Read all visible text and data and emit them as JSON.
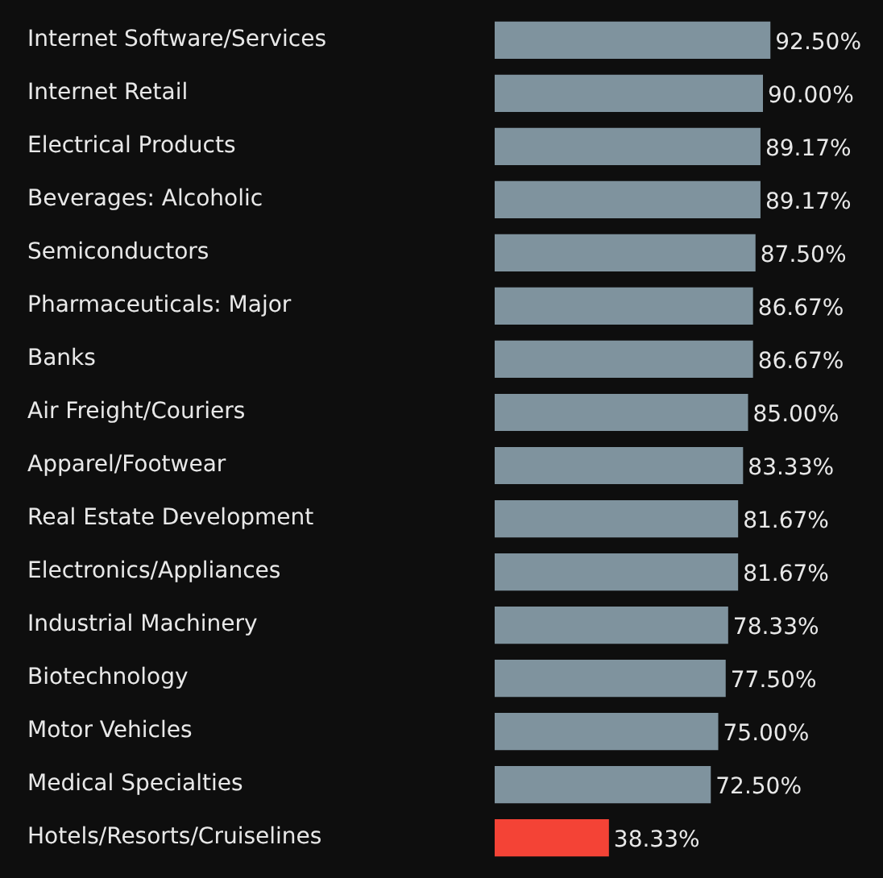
{
  "chart_data": {
    "type": "bar",
    "orientation": "horizontal",
    "categories": [
      "Internet Software/Services",
      "Internet Retail",
      "Electrical Products",
      "Beverages: Alcoholic",
      "Semiconductors",
      "Pharmaceuticals: Major",
      "Banks",
      "Air Freight/Couriers",
      "Apparel/Footwear",
      "Real Estate Development",
      "Electronics/Appliances",
      "Industrial Machinery",
      "Biotechnology",
      "Motor Vehicles",
      "Medical Specialties",
      "Hotels/Resorts/Cruiselines"
    ],
    "values": [
      92.5,
      90.0,
      89.17,
      89.17,
      87.5,
      86.67,
      86.67,
      85.0,
      83.33,
      81.67,
      81.67,
      78.33,
      77.5,
      75.0,
      72.5,
      38.33
    ],
    "value_labels": [
      "92.50%",
      "90.00%",
      "89.17%",
      "89.17%",
      "87.50%",
      "86.67%",
      "86.67%",
      "85.00%",
      "83.33%",
      "81.67%",
      "81.67%",
      "78.33%",
      "77.50%",
      "75.00%",
      "72.50%",
      "38.33%"
    ],
    "colors": [
      "#7f939e",
      "#7f939e",
      "#7f939e",
      "#7f939e",
      "#7f939e",
      "#7f939e",
      "#7f939e",
      "#7f939e",
      "#7f939e",
      "#7f939e",
      "#7f939e",
      "#7f939e",
      "#7f939e",
      "#7f939e",
      "#7f939e",
      "#f44336"
    ],
    "tick_labels": "y"
  }
}
